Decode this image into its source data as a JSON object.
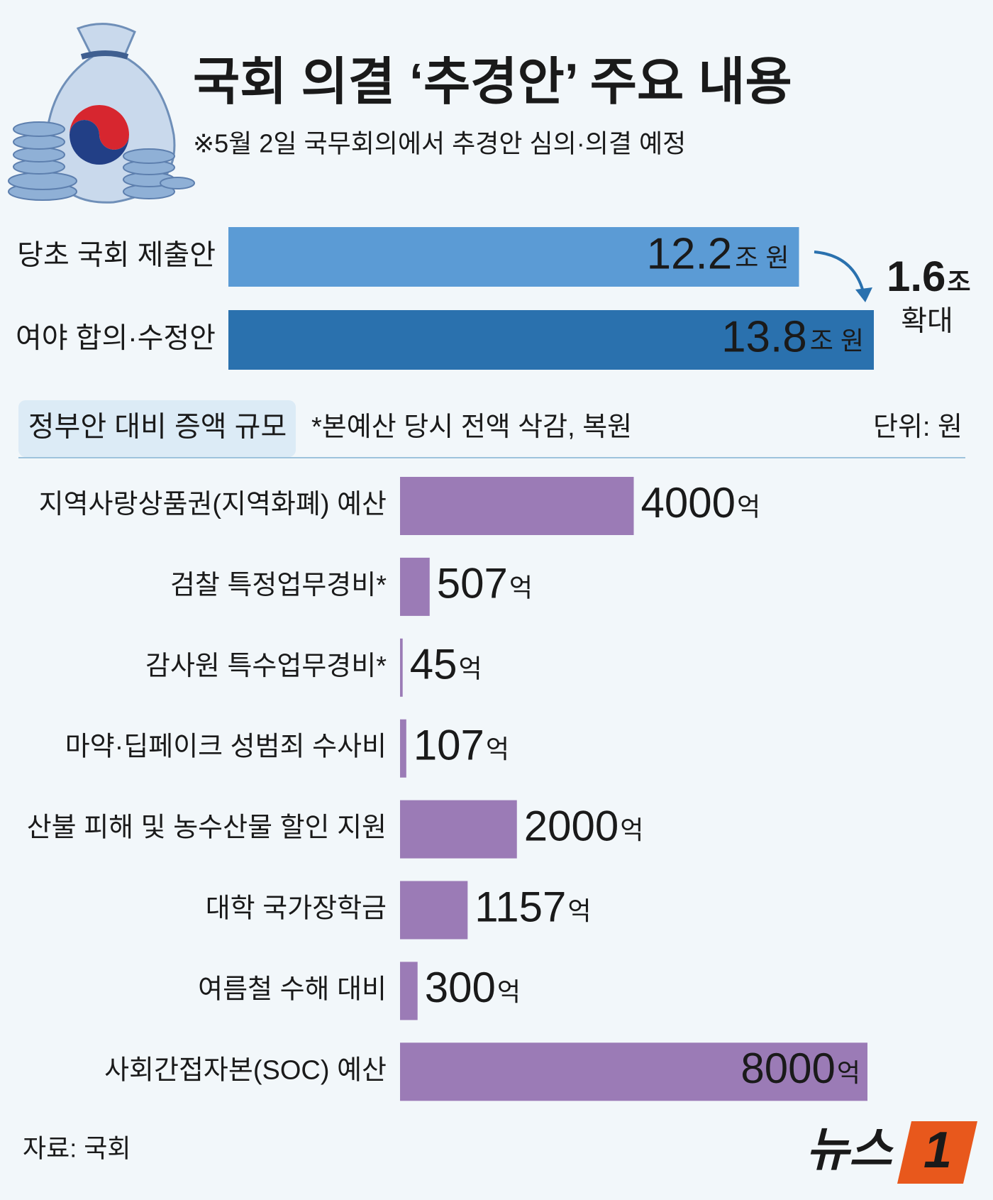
{
  "header": {
    "title": "국회 의결 ‘추경안’ 주요 내용",
    "subtitle": "※5월 2일 국무회의에서 추경안 심의·의결 예정"
  },
  "chart_data": [
    {
      "type": "bar",
      "orientation": "horizontal",
      "categories": [
        "당초 국회 제출안",
        "여야 합의·수정안"
      ],
      "values": [
        12.2,
        13.8
      ],
      "colors": [
        "#5b9bd5",
        "#2a71ae"
      ],
      "value_unit": "조 원",
      "xlim": [
        0,
        13.8
      ],
      "annotation": {
        "value": "1.6",
        "unit": "조",
        "text": "확대"
      }
    },
    {
      "type": "bar",
      "orientation": "horizontal",
      "title": "정부안 대비 증액 규모",
      "note": "*본예산 당시 전액 삭감, 복원",
      "unit_label": "단위: 원",
      "categories": [
        "지역사랑상품권(지역화폐) 예산",
        "검찰 특정업무경비*",
        "감사원 특수업무경비*",
        "마약·딥페이크 성범죄 수사비",
        "산불 피해 및 농수산물 할인 지원",
        "대학 국가장학금",
        "여름철 수해 대비",
        "사회간접자본(SOC) 예산"
      ],
      "values": [
        4000,
        507,
        45,
        107,
        2000,
        1157,
        300,
        8000
      ],
      "color": "#9b7bb6",
      "value_unit": "억",
      "xlim": [
        0,
        8000
      ]
    }
  ],
  "footer": {
    "source": "자료: 국회",
    "logo": "뉴스",
    "logo_number": "1"
  }
}
